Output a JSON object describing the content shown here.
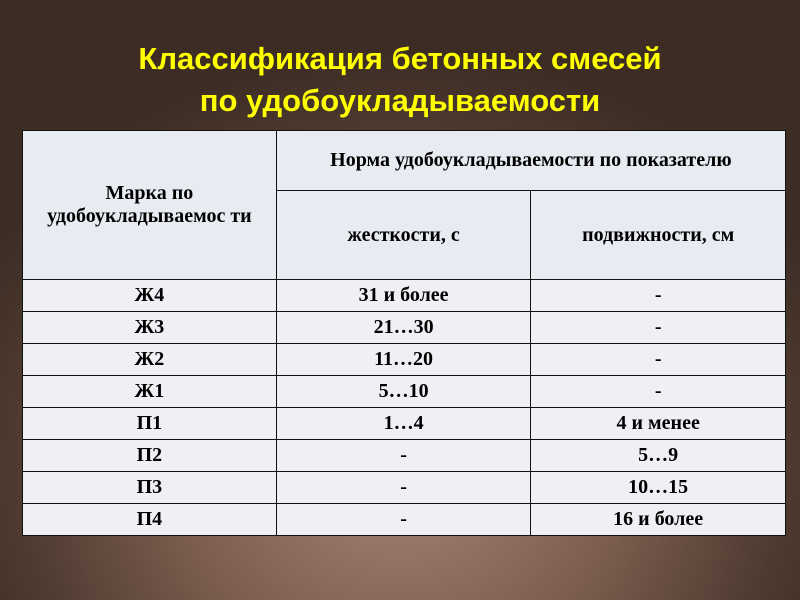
{
  "title": {
    "line1": "Классификация бетонных смесей",
    "line2": "по удобоукладываемости"
  },
  "table": {
    "header": {
      "mark": "Марка по удобоукладываемос ти",
      "norm": "Норма удобоукладываемости по показателю",
      "stiffness": "жесткости, с",
      "mobility": "подвижности, см"
    },
    "rows": [
      [
        "Ж4",
        "31 и более",
        "-"
      ],
      [
        "Ж3",
        "21…30",
        "-"
      ],
      [
        "Ж2",
        "11…20",
        "-"
      ],
      [
        "Ж1",
        "5…10",
        "-"
      ],
      [
        "П1",
        "1…4",
        "4 и менее"
      ],
      [
        "П2",
        "-",
        "5…9"
      ],
      [
        "П3",
        "-",
        "10…15"
      ],
      [
        "П4",
        "-",
        "16 и более"
      ]
    ]
  }
}
